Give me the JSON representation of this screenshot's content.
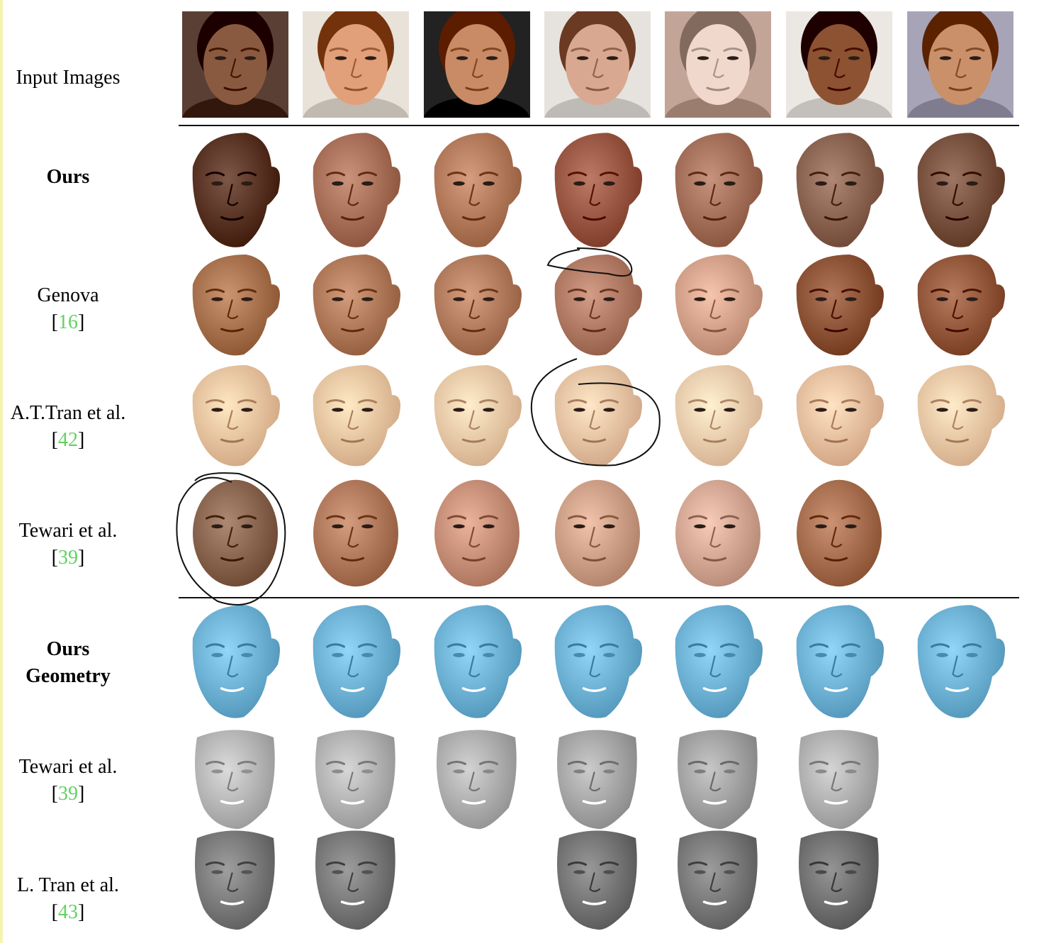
{
  "columns": 7,
  "rows": [
    {
      "id": "input-images",
      "label_lines": [
        "Input Images"
      ],
      "bold": false,
      "citation": "",
      "kind": "photo",
      "cells": [
        {
          "skin": "#8a5a40",
          "bg": "#5a4034"
        },
        {
          "skin": "#e2a07a",
          "bg": "#e8e2d8"
        },
        {
          "skin": "#c98a66",
          "bg": "#222222"
        },
        {
          "skin": "#d8a890",
          "bg": "#e6e3de"
        },
        {
          "skin": "#f0d8cc",
          "bg": "#c3a598"
        },
        {
          "skin": "#8c5232",
          "bg": "#ebe7e2"
        },
        {
          "skin": "#c9906a",
          "bg": "#a8a4b8"
        }
      ]
    },
    {
      "id": "ours",
      "label_lines": [
        "Ours"
      ],
      "bold": true,
      "citation": "",
      "kind": "texture",
      "cells": [
        {
          "skin": "#5a3424"
        },
        {
          "skin": "#a87058"
        },
        {
          "skin": "#b47a5c"
        },
        {
          "skin": "#9a5844"
        },
        {
          "skin": "#a4705a"
        },
        {
          "skin": "#8c6452"
        },
        {
          "skin": "#7a5240"
        }
      ]
    },
    {
      "id": "genova",
      "label_lines": [
        "Genova"
      ],
      "bold": false,
      "citation": "16",
      "kind": "texture",
      "cells": [
        {
          "skin": "#a8724e"
        },
        {
          "skin": "#b07a5a"
        },
        {
          "skin": "#b37c5e"
        },
        {
          "skin": "#b07a64"
        },
        {
          "skin": "#d4a28a"
        },
        {
          "skin": "#8e5438"
        },
        {
          "skin": "#94583c"
        }
      ]
    },
    {
      "id": "at-tran",
      "label_lines": [
        "A.T.Tran et al."
      ],
      "bold": false,
      "citation": "42",
      "kind": "texture",
      "cells": [
        {
          "skin": "#f0c4a0"
        },
        {
          "skin": "#f0c6a2"
        },
        {
          "skin": "#f2caa8"
        },
        {
          "skin": "#eec4a4"
        },
        {
          "skin": "#f4ceae"
        },
        {
          "skin": "#eec0a0"
        },
        {
          "skin": "#f2c8a6"
        }
      ]
    },
    {
      "id": "tewari-texture",
      "label_lines": [
        "Tewari et al."
      ],
      "bold": false,
      "citation": "39",
      "kind": "oval",
      "cells": [
        {
          "skin": "#8a6650"
        },
        {
          "skin": "#b27a5c"
        },
        {
          "skin": "#c89078"
        },
        {
          "skin": "#cfa088"
        },
        {
          "skin": "#d4a894"
        },
        {
          "skin": "#a87050"
        },
        null
      ]
    },
    {
      "id": "ours-geometry",
      "label_lines": [
        "Ours",
        "Geometry"
      ],
      "bold": true,
      "citation": "",
      "kind": "geometry",
      "cells": [
        {
          "skin": "#6fb3d6"
        },
        {
          "skin": "#6fb3d6"
        },
        {
          "skin": "#6fb3d6"
        },
        {
          "skin": "#6fb3d6"
        },
        {
          "skin": "#6fb3d6"
        },
        {
          "skin": "#6fb3d6"
        },
        {
          "skin": "#6fb3d6"
        }
      ]
    },
    {
      "id": "tewari-geometry",
      "label_lines": [
        "Tewari et al."
      ],
      "bold": false,
      "citation": "39",
      "kind": "mask",
      "cells": [
        {
          "skin": "#b8b8b8"
        },
        {
          "skin": "#b4b4b4"
        },
        {
          "skin": "#b0b0b0"
        },
        {
          "skin": "#a8a8a8"
        },
        {
          "skin": "#a4a4a4"
        },
        {
          "skin": "#b2b2b2"
        },
        null
      ]
    },
    {
      "id": "l-tran",
      "label_lines": [
        "L. Tran et al."
      ],
      "bold": false,
      "citation": "43",
      "kind": "mask",
      "cells": [
        {
          "skin": "#7c7c7c"
        },
        {
          "skin": "#7a7a7a"
        },
        null,
        {
          "skin": "#767676"
        },
        {
          "skin": "#7a7a7a"
        },
        {
          "skin": "#727272"
        },
        null
      ]
    }
  ],
  "annotations": [
    {
      "row": "genova",
      "col": 3,
      "shape": "forehead-loop"
    },
    {
      "row": "at-tran",
      "col": 3,
      "shape": "face-loop"
    },
    {
      "row": "tewari-texture",
      "col": 0,
      "shape": "face-loop"
    }
  ],
  "colors": {
    "citation": "#5fd35f",
    "divider": "#111111",
    "accent_strip": "#f6f3b0"
  }
}
